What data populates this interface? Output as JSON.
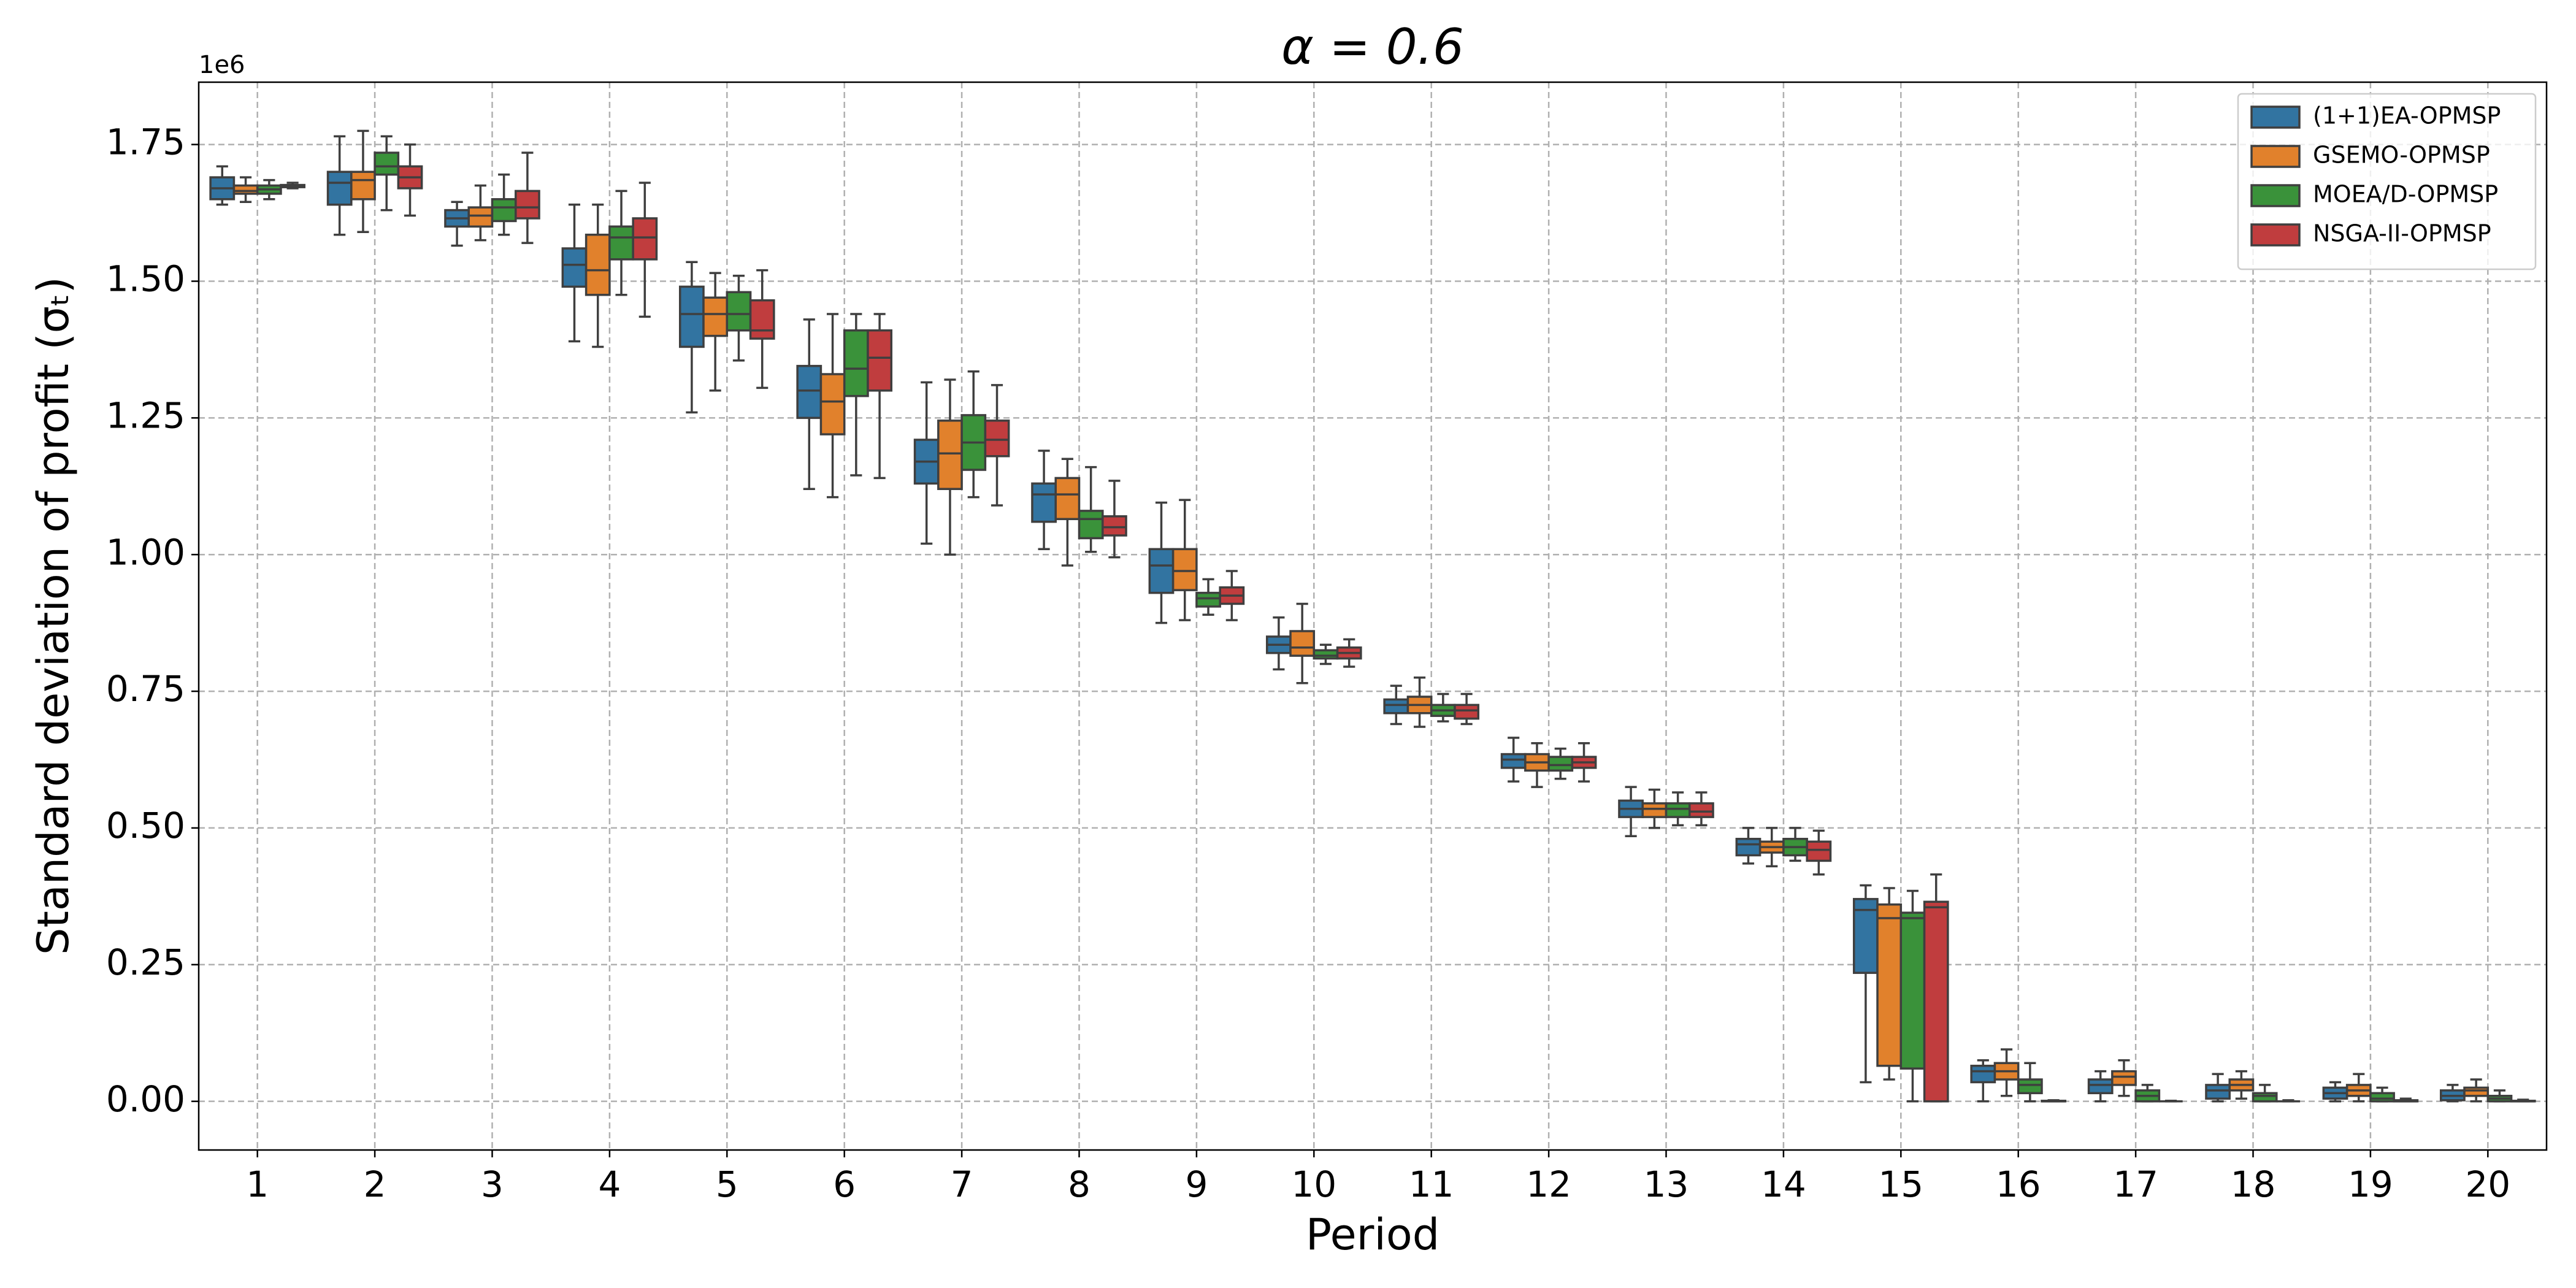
{
  "chart_data": {
    "type": "box",
    "title": "α = 0.6",
    "x_label": "Period",
    "y_label": "Standard deviation of profit (σₜ)",
    "y_offset_label": "1e6",
    "categories": [
      "1",
      "2",
      "3",
      "4",
      "5",
      "6",
      "7",
      "8",
      "9",
      "10",
      "11",
      "12",
      "13",
      "14",
      "15",
      "16",
      "17",
      "18",
      "19",
      "20"
    ],
    "ylim": [
      -0.089,
      1.864
    ],
    "yticks": [
      {
        "value": 0,
        "label": "0.00"
      },
      0.25,
      {
        "value": 0.5,
        "label": "0.50"
      },
      0.75,
      {
        "value": 1,
        "label": "1.00"
      },
      1.25,
      {
        "value": 1.5,
        "label": "1.50"
      },
      1.75
    ],
    "grid": true,
    "legend": "upper right",
    "series": [
      {
        "name": "(1+1)EA-OPMSP",
        "color": "#3274a1",
        "values": [
          [
            1.64,
            1.65,
            1.67,
            1.69,
            1.71
          ],
          [
            1.585,
            1.64,
            1.68,
            1.7,
            1.765
          ],
          [
            1.565,
            1.6,
            1.615,
            1.63,
            1.645
          ],
          [
            1.39,
            1.49,
            1.53,
            1.56,
            1.64
          ],
          [
            1.26,
            1.38,
            1.44,
            1.49,
            1.535
          ],
          [
            1.12,
            1.25,
            1.3,
            1.345,
            1.43
          ],
          [
            1.02,
            1.13,
            1.17,
            1.21,
            1.315
          ],
          [
            1.01,
            1.06,
            1.11,
            1.13,
            1.19
          ],
          [
            0.875,
            0.93,
            0.98,
            1.01,
            1.095
          ],
          [
            0.79,
            0.82,
            0.835,
            0.85,
            0.885
          ],
          [
            0.69,
            0.71,
            0.725,
            0.735,
            0.76
          ],
          [
            0.585,
            0.61,
            0.625,
            0.635,
            0.665
          ],
          [
            0.485,
            0.52,
            0.535,
            0.55,
            0.575
          ],
          [
            0.435,
            0.45,
            0.47,
            0.48,
            0.5
          ],
          [
            0.035,
            0.235,
            0.35,
            0.37,
            0.395
          ],
          [
            0,
            0.035,
            0.055,
            0.065,
            0.075
          ],
          [
            0,
            0.015,
            0.03,
            0.04,
            0.055
          ],
          [
            0,
            0.005,
            0.02,
            0.03,
            0.05
          ],
          [
            0,
            0.005,
            0.015,
            0.025,
            0.035
          ],
          [
            0,
            0.002,
            0.01,
            0.02,
            0.03
          ]
        ]
      },
      {
        "name": "GSEMO-OPMSP",
        "color": "#e1812c",
        "values": [
          [
            1.645,
            1.66,
            1.665,
            1.675,
            1.69
          ],
          [
            1.59,
            1.65,
            1.685,
            1.7,
            1.775
          ],
          [
            1.575,
            1.6,
            1.62,
            1.635,
            1.675
          ],
          [
            1.38,
            1.475,
            1.52,
            1.585,
            1.64
          ],
          [
            1.3,
            1.4,
            1.44,
            1.47,
            1.515
          ],
          [
            1.105,
            1.22,
            1.28,
            1.33,
            1.44
          ],
          [
            1.0,
            1.12,
            1.185,
            1.245,
            1.32
          ],
          [
            0.98,
            1.065,
            1.11,
            1.14,
            1.175
          ],
          [
            0.88,
            0.935,
            0.97,
            1.01,
            1.1
          ],
          [
            0.765,
            0.815,
            0.83,
            0.86,
            0.91
          ],
          [
            0.685,
            0.71,
            0.725,
            0.74,
            0.775
          ],
          [
            0.575,
            0.605,
            0.62,
            0.635,
            0.655
          ],
          [
            0.5,
            0.52,
            0.535,
            0.545,
            0.57
          ],
          [
            0.43,
            0.455,
            0.465,
            0.475,
            0.5
          ],
          [
            0.04,
            0.065,
            0.335,
            0.36,
            0.39
          ],
          [
            0.01,
            0.04,
            0.055,
            0.07,
            0.095
          ],
          [
            0.01,
            0.03,
            0.045,
            0.055,
            0.075
          ],
          [
            0.005,
            0.02,
            0.03,
            0.04,
            0.055
          ],
          [
            0,
            0.01,
            0.02,
            0.03,
            0.05
          ],
          [
            0,
            0.01,
            0.02,
            0.025,
            0.04
          ]
        ]
      },
      {
        "name": "MOEA/D-OPMSP",
        "color": "#3a923a",
        "values": [
          [
            1.65,
            1.66,
            1.668,
            1.675,
            1.685
          ],
          [
            1.63,
            1.695,
            1.71,
            1.735,
            1.765
          ],
          [
            1.585,
            1.61,
            1.635,
            1.65,
            1.695
          ],
          [
            1.475,
            1.54,
            1.58,
            1.6,
            1.665
          ],
          [
            1.355,
            1.41,
            1.44,
            1.48,
            1.51
          ],
          [
            1.145,
            1.29,
            1.34,
            1.41,
            1.44
          ],
          [
            1.105,
            1.155,
            1.205,
            1.255,
            1.335
          ],
          [
            1.005,
            1.03,
            1.065,
            1.08,
            1.16
          ],
          [
            0.89,
            0.905,
            0.92,
            0.93,
            0.955
          ],
          [
            0.8,
            0.81,
            0.815,
            0.825,
            0.835
          ],
          [
            0.695,
            0.705,
            0.715,
            0.725,
            0.745
          ],
          [
            0.59,
            0.605,
            0.615,
            0.63,
            0.645
          ],
          [
            0.505,
            0.52,
            0.535,
            0.545,
            0.565
          ],
          [
            0.44,
            0.45,
            0.465,
            0.48,
            0.5
          ],
          [
            0,
            0.06,
            0.335,
            0.345,
            0.385
          ],
          [
            0,
            0.015,
            0.03,
            0.04,
            0.07
          ],
          [
            0,
            0,
            0.01,
            0.02,
            0.03
          ],
          [
            0,
            0,
            0.01,
            0.015,
            0.03
          ],
          [
            0,
            0,
            0.005,
            0.015,
            0.025
          ],
          [
            0,
            0,
            0.005,
            0.01,
            0.02
          ]
        ]
      },
      {
        "name": "NSGA-II-OPMSP",
        "color": "#c03d3e",
        "values": [
          [
            1.67,
            1.672,
            1.674,
            1.676,
            1.68
          ],
          [
            1.62,
            1.67,
            1.69,
            1.71,
            1.75
          ],
          [
            1.57,
            1.615,
            1.635,
            1.665,
            1.735
          ],
          [
            1.435,
            1.54,
            1.58,
            1.615,
            1.68
          ],
          [
            1.305,
            1.395,
            1.41,
            1.465,
            1.52
          ],
          [
            1.14,
            1.3,
            1.36,
            1.41,
            1.44
          ],
          [
            1.09,
            1.18,
            1.21,
            1.245,
            1.31
          ],
          [
            0.995,
            1.035,
            1.05,
            1.07,
            1.135
          ],
          [
            0.88,
            0.91,
            0.925,
            0.94,
            0.97
          ],
          [
            0.795,
            0.81,
            0.82,
            0.83,
            0.845
          ],
          [
            0.69,
            0.7,
            0.715,
            0.725,
            0.745
          ],
          [
            0.585,
            0.61,
            0.62,
            0.63,
            0.655
          ],
          [
            0.505,
            0.52,
            0.53,
            0.545,
            0.565
          ],
          [
            0.415,
            0.44,
            0.46,
            0.475,
            0.495
          ],
          [
            0,
            0,
            0.355,
            0.365,
            0.415
          ],
          [
            0,
            0,
            0,
            0.001,
            0.002
          ],
          [
            0,
            0,
            0,
            0,
            0.001
          ],
          [
            0,
            0,
            0,
            0,
            0.002
          ],
          [
            0,
            0,
            0,
            0.002,
            0.005
          ],
          [
            0,
            0,
            0,
            0.001,
            0.003
          ]
        ]
      }
    ]
  }
}
